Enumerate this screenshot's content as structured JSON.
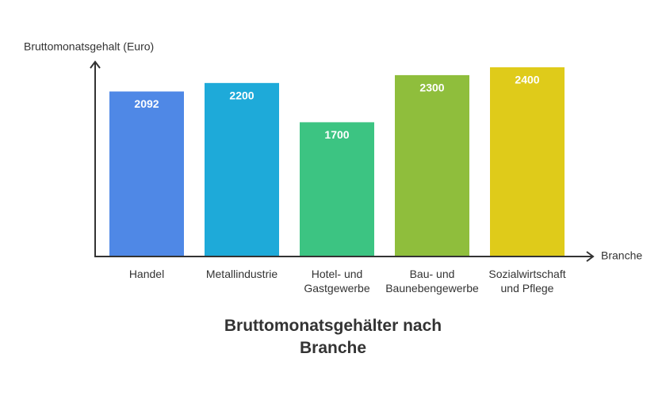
{
  "chart_data": {
    "type": "bar",
    "title": "Bruttomonatsgehälter nach\nBranche",
    "y_label": "Bruttomonatsgehalt (Euro)",
    "x_label": "Branche",
    "categories": [
      "Handel",
      "Metallindustrie",
      "Hotel- und\nGastgewerbe",
      "Bau- und\nBaunebengewerbe",
      "Sozialwirtschaft\nund Pflege"
    ],
    "values": [
      2092,
      2200,
      1700,
      2300,
      2400
    ],
    "colors": [
      "#4f88e6",
      "#1eaad9",
      "#3cc482",
      "#8fbe3c",
      "#dfcb1a"
    ],
    "ylim": [
      0,
      2400
    ]
  }
}
